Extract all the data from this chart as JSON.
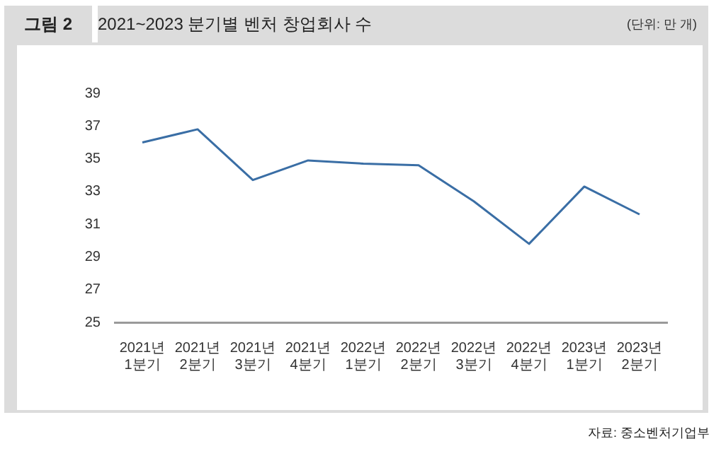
{
  "chart_data": {
    "type": "line",
    "title": "2021~2023 분기별 벤처 창업회사 수",
    "ylabel": "(단위: 만 개)",
    "annotations": [
      "그림 2",
      "자료: 중소벤처기업부"
    ],
    "categories": [
      "2021년 1분기",
      "2021년 2분기",
      "2021년 3분기",
      "2021년 4분기",
      "2022년 1분기",
      "2022년 2분기",
      "2022년 3분기",
      "2022년 4분기",
      "2023년 1분기",
      "2023년 2분기"
    ],
    "series": [
      {
        "color": "#3a6ea5",
        "values": [
          36.0,
          36.8,
          33.7,
          34.9,
          34.7,
          34.6,
          32.4,
          29.8,
          33.3,
          31.6
        ]
      }
    ],
    "ylim": [
      25,
      39
    ],
    "yticks": [
      25,
      27,
      29,
      31,
      33,
      35,
      37,
      39
    ]
  }
}
